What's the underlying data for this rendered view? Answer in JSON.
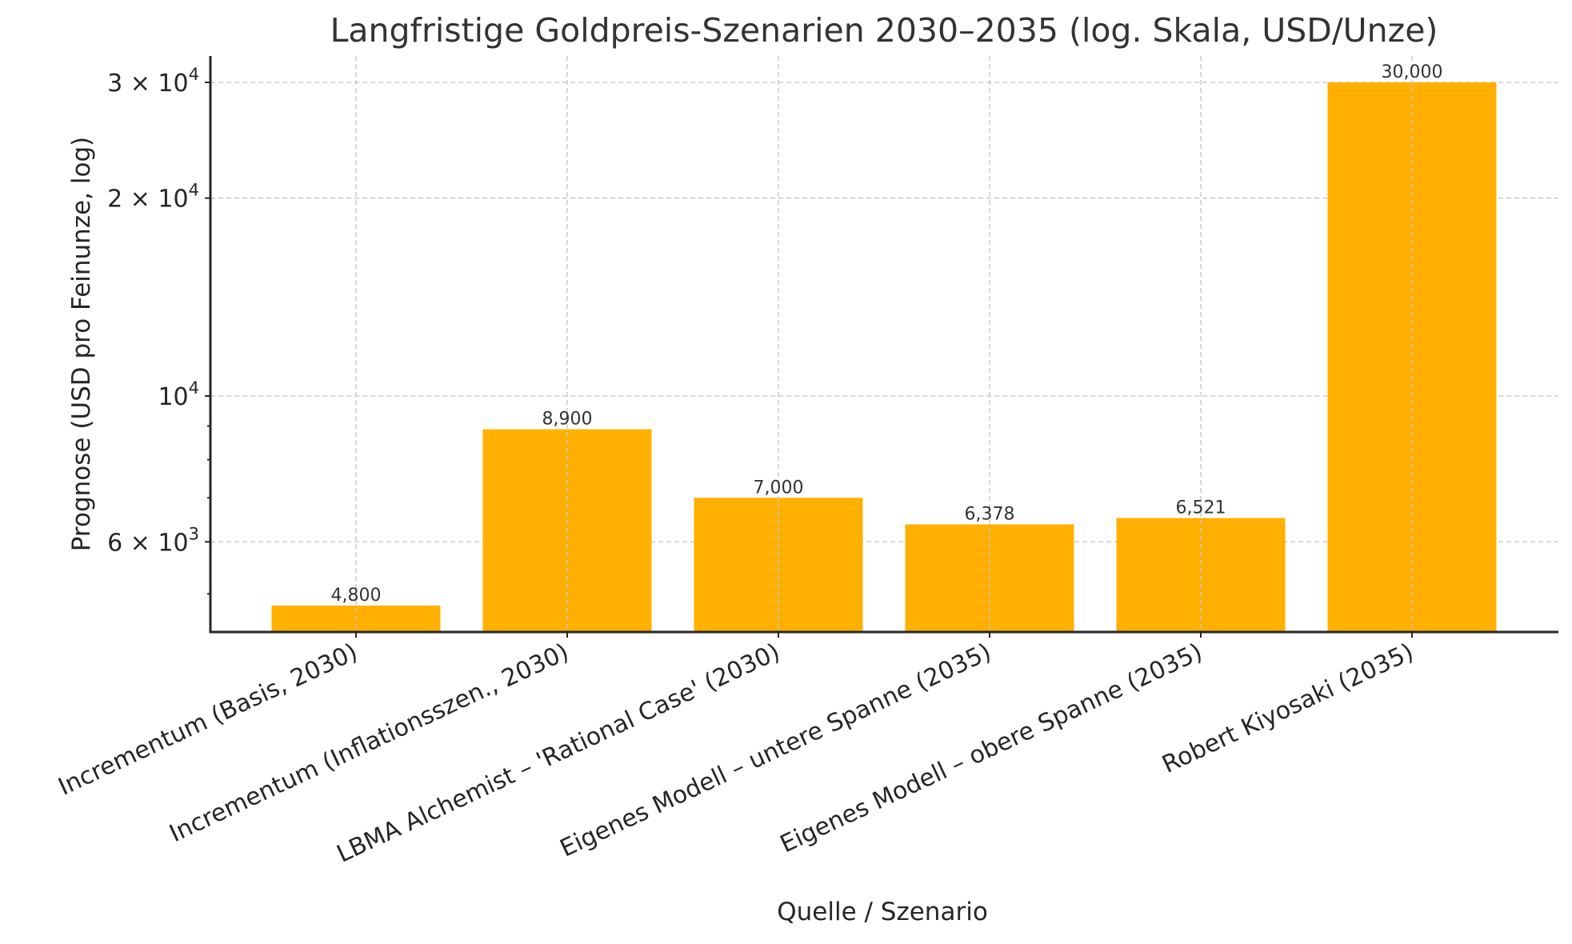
{
  "chart_data": {
    "type": "bar",
    "title": "Langfristige Goldpreis-Szenarien 2030–2035 (log. Skala, USD/Unze)",
    "xlabel": "Quelle / Szenario",
    "ylabel": "Prognose (USD pro Feinunze, log)",
    "yscale": "log",
    "ylim": [
      4375,
      32900
    ],
    "grid": true,
    "legend": null,
    "categories": [
      "Incrementum (Basis, 2030)",
      "Incrementum (Inflationsszen., 2030)",
      "LBMA Alchemist – 'Rational Case' (2030)",
      "Eigenes Modell – untere Spanne (2035)",
      "Eigenes Modell – obere Spanne (2035)",
      "Robert Kiyosaki (2035)"
    ],
    "values": [
      4800,
      8900,
      7000,
      6378,
      6521,
      30000
    ],
    "value_labels": [
      "4,800",
      "8,900",
      "7,000",
      "6,378",
      "6,521",
      "30,000"
    ],
    "yticks_major": [
      {
        "value": 6000,
        "mantissa": "6 × 10",
        "exp": "3"
      },
      {
        "value": 10000,
        "mantissa": "10",
        "exp": "4"
      },
      {
        "value": 20000,
        "mantissa": "2 × 10",
        "exp": "4"
      },
      {
        "value": 30000,
        "mantissa": "3 × 10",
        "exp": "4"
      }
    ],
    "yticks_minor": [
      5000,
      7000,
      8000,
      9000
    ],
    "bar_color": "#FFB000"
  }
}
